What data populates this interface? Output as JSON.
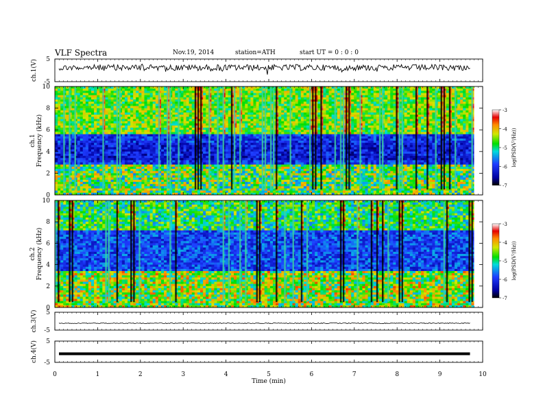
{
  "header": {
    "title": "VLF Spectra",
    "date": "Nov.19, 2014",
    "station": "station=ATH",
    "start": "start UT =  0 : 0 : 0"
  },
  "chart_data": [
    {
      "type": "line",
      "ylabel": "ch.1(V)",
      "ylim": [
        -5,
        5
      ],
      "yticks": [
        "5",
        "-5"
      ],
      "xlim": [
        0,
        10
      ],
      "description_values": {
        "x_end": 9.8,
        "baseline": 0.2,
        "noise_amp": 1.5
      }
    },
    {
      "type": "heatmap",
      "ylabel": "ch.1 Frequency (kHz)",
      "ylim": [
        0,
        10
      ],
      "yticks": [
        "0",
        "2",
        "4",
        "6",
        "8",
        "10"
      ],
      "xlim": [
        0,
        10
      ],
      "colorbar": {
        "label": "log(PSD(V²/Hz))",
        "ticks": [
          "-3",
          "-4",
          "-5",
          "-6",
          "-7"
        ],
        "range": [
          -7,
          -3
        ]
      }
    },
    {
      "type": "heatmap",
      "ylabel": "ch.2 Frequency (kHz)",
      "ylim": [
        0,
        10
      ],
      "yticks": [
        "0",
        "2",
        "4",
        "6",
        "8",
        "10"
      ],
      "xlim": [
        0,
        10
      ],
      "colorbar": {
        "label": "log(PSD(V²/Hz))",
        "ticks": [
          "-3",
          "-4",
          "-5",
          "-6",
          "-7"
        ],
        "range": [
          -7,
          -3
        ]
      }
    },
    {
      "type": "line",
      "ylabel": "ch.3(V)",
      "ylim": [
        -5,
        5
      ],
      "yticks": [
        "5",
        "-5"
      ],
      "xlim": [
        0,
        10
      ]
    },
    {
      "type": "line",
      "ylabel": "ch.4(V)",
      "ylim": [
        -5,
        5
      ],
      "yticks": [
        "5",
        "-5"
      ],
      "xlim": [
        0,
        10
      ]
    }
  ],
  "xaxis": {
    "label": "Time  (min)",
    "ticks": [
      "0",
      "1",
      "2",
      "3",
      "4",
      "5",
      "6",
      "7",
      "8",
      "9",
      "10"
    ],
    "data_end": 9.8
  }
}
